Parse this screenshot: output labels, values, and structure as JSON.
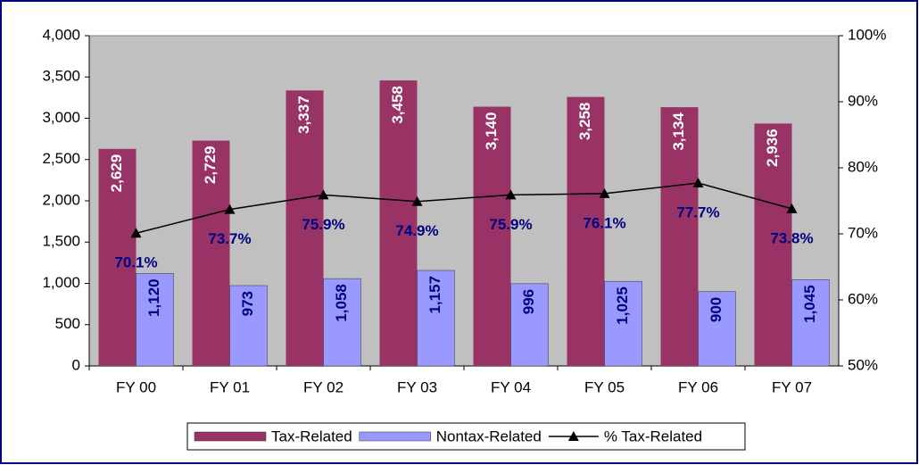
{
  "chart_data": {
    "type": "bar_line",
    "categories": [
      "FY 00",
      "FY 01",
      "FY 02",
      "FY 03",
      "FY 04",
      "FY 05",
      "FY 06",
      "FY 07"
    ],
    "series": [
      {
        "name": "Tax-Related",
        "color": "#993366",
        "values": [
          2629,
          2729,
          3337,
          3458,
          3140,
          3258,
          3134,
          2936
        ],
        "value_labels": [
          "2,629",
          "2,729",
          "3,337",
          "3,458",
          "3,140",
          "3,258",
          "3,134",
          "2,936"
        ]
      },
      {
        "name": "Nontax-Related",
        "color": "#9999ff",
        "values": [
          1120,
          973,
          1058,
          1157,
          996,
          1025,
          900,
          1045
        ],
        "value_labels": [
          "1,120",
          "973",
          "1,058",
          "1,157",
          "996",
          "1,025",
          "900",
          "1,045"
        ]
      },
      {
        "name": "% Tax-Related",
        "color": "#000000",
        "axis": "y2",
        "values": [
          70.1,
          73.7,
          75.9,
          74.9,
          75.9,
          76.1,
          77.7,
          73.8
        ],
        "value_labels": [
          "70.1%",
          "73.7%",
          "75.9%",
          "74.9%",
          "75.9%",
          "76.1%",
          "77.7%",
          "73.8%"
        ]
      }
    ],
    "ylim": [
      0,
      4000
    ],
    "yticks": [
      0,
      500,
      {
        "value": 1000,
        "label": "1,000"
      },
      {
        "value": 1500,
        "label": "1,500"
      },
      {
        "value": 2000,
        "label": "2,000"
      },
      {
        "value": 2500,
        "label": "2,500"
      },
      {
        "value": 3000,
        "label": "3,000"
      },
      {
        "value": 3500,
        "label": "3,500"
      },
      {
        "value": 4000,
        "label": "4,000"
      }
    ],
    "y2lim": [
      50,
      100
    ],
    "y2ticks": [
      {
        "value": 50,
        "label": "50%"
      },
      {
        "value": 60,
        "label": "60%"
      },
      {
        "value": 70,
        "label": "70%"
      },
      {
        "value": 80,
        "label": "80%"
      },
      {
        "value": 90,
        "label": "90%"
      },
      {
        "value": 100,
        "label": "100%"
      }
    ],
    "plot_background": "#c0c0c0"
  }
}
